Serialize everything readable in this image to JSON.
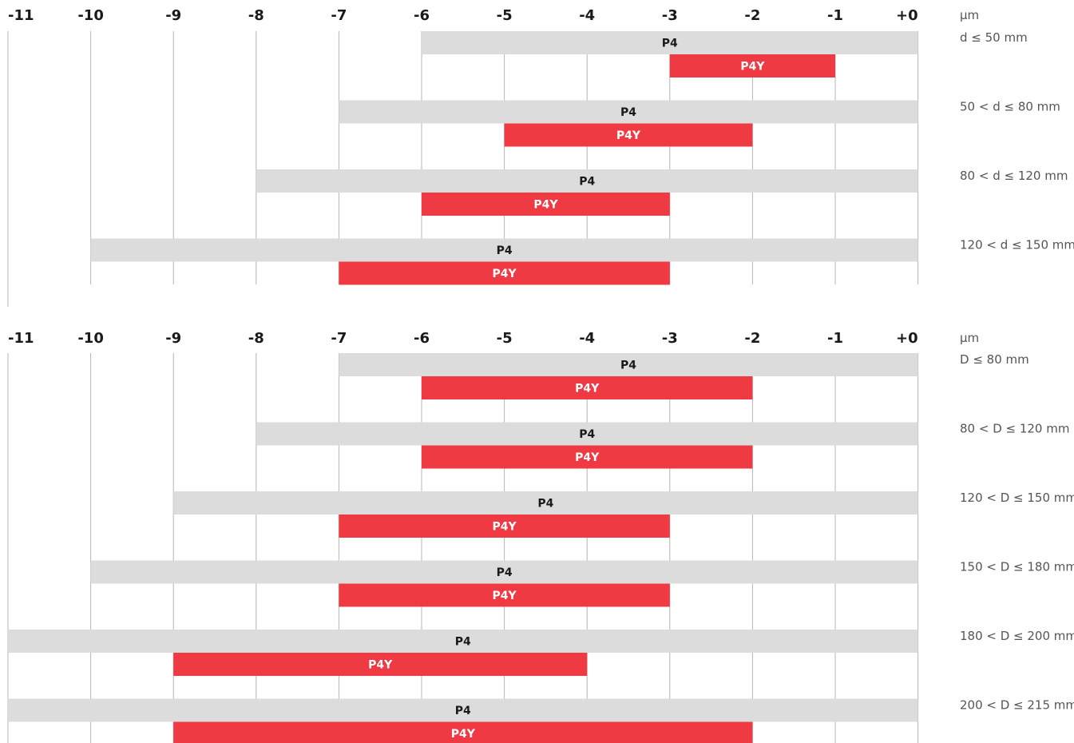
{
  "colors": {
    "p4_bar": "#dcdcdd",
    "p4y_bar": "#ef3a43",
    "p4_text": "#1a1a1a",
    "p4y_text": "#ffffff"
  },
  "chart_data": [
    {
      "type": "bar",
      "orientation": "horizontal-range",
      "unit": "µm",
      "xlim": [
        -11,
        0
      ],
      "x_ticks": [
        -11,
        -10,
        -9,
        -8,
        -7,
        -6,
        -5,
        -4,
        -3,
        -2,
        -1,
        0
      ],
      "x_tick_labels": [
        "-11",
        "-10",
        "-9",
        "-8",
        "-7",
        "-6",
        "-5",
        "-4",
        "-3",
        "-2",
        "-1",
        "+0"
      ],
      "rows": [
        {
          "label": "d ≤ 50 mm",
          "bars": [
            {
              "name": "P4",
              "from": -6,
              "to": 0
            },
            {
              "name": "P4Y",
              "from": -3,
              "to": -1
            }
          ]
        },
        {
          "label": "50 < d ≤ 80 mm",
          "bars": [
            {
              "name": "P4",
              "from": -7,
              "to": 0
            },
            {
              "name": "P4Y",
              "from": -5,
              "to": -2
            }
          ]
        },
        {
          "label": "80 < d ≤ 120 mm",
          "bars": [
            {
              "name": "P4",
              "from": -8,
              "to": 0
            },
            {
              "name": "P4Y",
              "from": -6,
              "to": -3
            }
          ]
        },
        {
          "label": "120 < d ≤ 150 mm",
          "bars": [
            {
              "name": "P4",
              "from": -10,
              "to": 0
            },
            {
              "name": "P4Y",
              "from": -7,
              "to": -3
            }
          ]
        }
      ]
    },
    {
      "type": "bar",
      "orientation": "horizontal-range",
      "unit": "µm",
      "xlim": [
        -11,
        0
      ],
      "x_ticks": [
        -11,
        -10,
        -9,
        -8,
        -7,
        -6,
        -5,
        -4,
        -3,
        -2,
        -1,
        0
      ],
      "x_tick_labels": [
        "-11",
        "-10",
        "-9",
        "-8",
        "-7",
        "-6",
        "-5",
        "-4",
        "-3",
        "-2",
        "-1",
        "+0"
      ],
      "rows": [
        {
          "label": "D ≤ 80 mm",
          "bars": [
            {
              "name": "P4",
              "from": -7,
              "to": 0
            },
            {
              "name": "P4Y",
              "from": -6,
              "to": -2
            }
          ]
        },
        {
          "label": "80 < D ≤ 120 mm",
          "bars": [
            {
              "name": "P4",
              "from": -8,
              "to": 0
            },
            {
              "name": "P4Y",
              "from": -6,
              "to": -2
            }
          ]
        },
        {
          "label": "120 < D ≤ 150 mm",
          "bars": [
            {
              "name": "P4",
              "from": -9,
              "to": 0
            },
            {
              "name": "P4Y",
              "from": -7,
              "to": -3
            }
          ]
        },
        {
          "label": "150 < D ≤ 180 mm",
          "bars": [
            {
              "name": "P4",
              "from": -10,
              "to": 0
            },
            {
              "name": "P4Y",
              "from": -7,
              "to": -3
            }
          ]
        },
        {
          "label": "180 < D ≤ 200 mm",
          "bars": [
            {
              "name": "P4",
              "from": -11,
              "to": 0
            },
            {
              "name": "P4Y",
              "from": -9,
              "to": -4
            }
          ]
        },
        {
          "label": "200 < D ≤ 215 mm",
          "bars": [
            {
              "name": "P4",
              "from": -11,
              "to": 0
            },
            {
              "name": "P4Y",
              "from": -9,
              "to": -2
            }
          ]
        }
      ]
    }
  ]
}
